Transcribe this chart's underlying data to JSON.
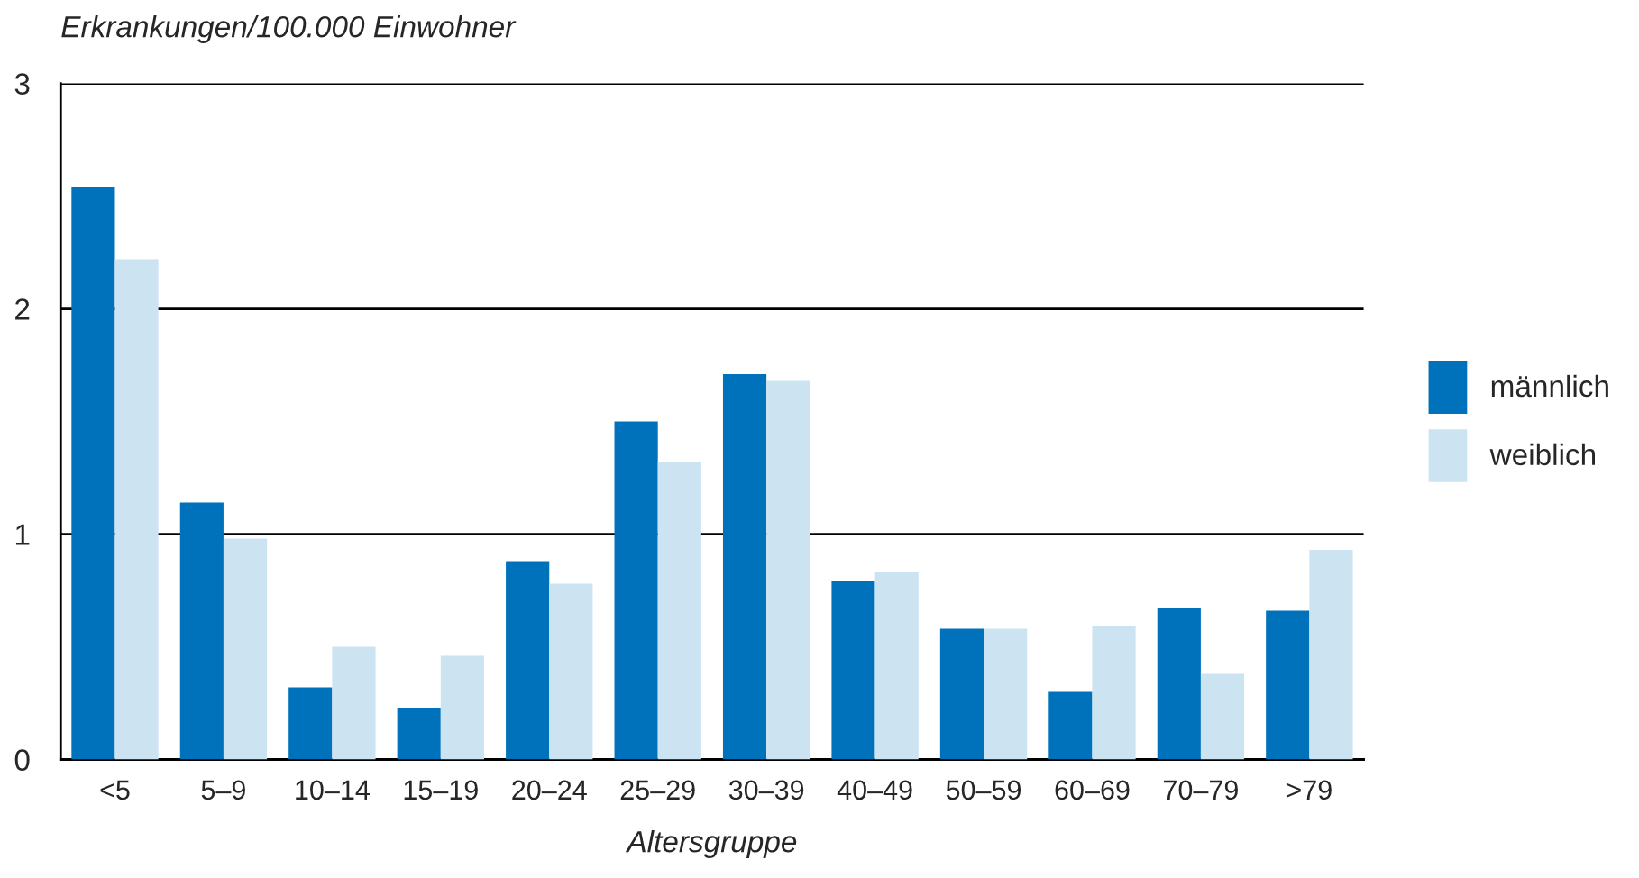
{
  "chart_data": {
    "type": "bar",
    "ylabel": "Erkrankungen/100.000 Einwohner",
    "xlabel": "Altersgruppe",
    "categories": [
      "<5",
      "5–9",
      "10–14",
      "15–19",
      "20–24",
      "25–29",
      "30–39",
      "40–49",
      "50–59",
      "60–69",
      "70–79",
      ">79"
    ],
    "series": [
      {
        "name": "männlich",
        "color": "#0072bb",
        "values": [
          2.54,
          1.14,
          0.32,
          0.23,
          0.88,
          1.5,
          1.71,
          0.79,
          0.58,
          0.3,
          0.67,
          0.66
        ]
      },
      {
        "name": "weiblich",
        "color": "#cce3f2",
        "values": [
          2.22,
          0.98,
          0.5,
          0.46,
          0.78,
          1.32,
          1.68,
          0.83,
          0.58,
          0.59,
          0.38,
          0.93
        ]
      }
    ],
    "ylim": [
      0,
      3
    ],
    "yticks": [
      0,
      1,
      2,
      3
    ],
    "grid": "y",
    "legend": "right"
  }
}
